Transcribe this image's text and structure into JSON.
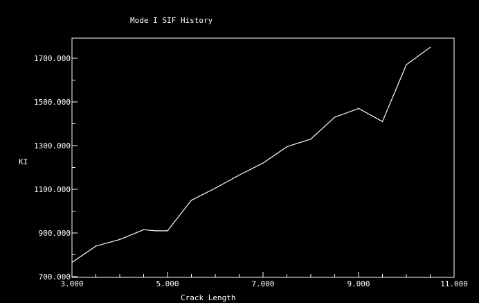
{
  "chart_data": {
    "type": "line",
    "title": "Mode I SIF History",
    "xlabel": "Crack Length",
    "ylabel": "KI",
    "xlim": [
      3.0,
      11.0
    ],
    "ylim": [
      700.0,
      1800.0
    ],
    "xticks": [
      3.0,
      5.0,
      7.0,
      9.0,
      11.0
    ],
    "xtick_labels": [
      "3.000",
      "5.000",
      "7.000",
      "9.000",
      "11.000"
    ],
    "yticks": [
      700.0,
      900.0,
      1100.0,
      1300.0,
      1500.0,
      1700.0
    ],
    "ytick_labels": [
      "700.000",
      "900.000",
      "1100.000",
      "1300.000",
      "1500.000",
      "1700.000"
    ],
    "grid": false,
    "background_color": "#000000",
    "foreground_color": "#ffffff",
    "series": [
      {
        "x": [
          3.0,
          3.1,
          3.5,
          4.0,
          4.5,
          4.75,
          5.0,
          5.5,
          6.0,
          6.5,
          7.0,
          7.5,
          8.0,
          8.5,
          9.0,
          9.5,
          10.0,
          10.5
        ],
        "y": [
          765,
          780,
          840,
          870,
          915,
          910,
          910,
          1050,
          1105,
          1165,
          1220,
          1295,
          1330,
          1430,
          1470,
          1410,
          1670,
          1750
        ]
      }
    ]
  }
}
